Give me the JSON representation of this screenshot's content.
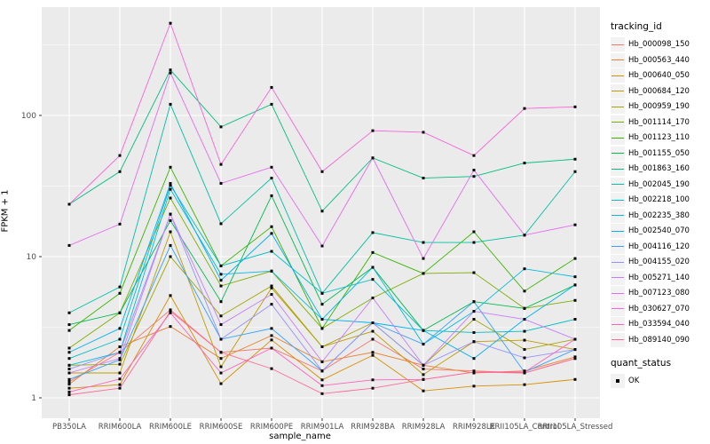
{
  "chart_data": {
    "type": "line",
    "title": "",
    "xlabel": "sample_name",
    "ylabel": "FPKM + 1",
    "y_scale": "log10",
    "y_ticks": [
      "1",
      "10",
      "100"
    ],
    "y_tick_values": [
      1,
      10,
      100
    ],
    "y_minor_values": [
      3.162,
      31.62,
      316.2
    ],
    "ylim": [
      0.72,
      590
    ],
    "grid": "on",
    "legend_position": "right",
    "panel_background": "#EBEBEB",
    "gridline_color": "#FFFFFF",
    "tick_label_color": "#4D4D4D",
    "point_marker": {
      "shape": "square",
      "color": "#000000",
      "size": 3
    },
    "categories": [
      "PB350LA",
      "RRIM600LA",
      "RRIM600LE",
      "RRIM600SE",
      "RRIM600PE",
      "RRIM901LA",
      "RRIM928BA",
      "RRIM928LA",
      "RRIM928LE",
      "RRII105LA_Control",
      "RRII105LA_Stressed"
    ],
    "series": [
      {
        "name": "Hb_000098_150",
        "color": "#F8766D",
        "values": [
          1.3,
          2.1,
          4.2,
          2.1,
          2.25,
          1.55,
          2.6,
          1.6,
          1.55,
          1.5,
          1.9
        ]
      },
      {
        "name": "Hb_000563_440",
        "color": "#EA8331",
        "values": [
          1.25,
          2.3,
          3.2,
          1.9,
          2.76,
          1.8,
          2.1,
          1.7,
          1.5,
          1.55,
          1.95
        ]
      },
      {
        "name": "Hb_000640_050",
        "color": "#D89000",
        "values": [
          1.17,
          1.24,
          5.3,
          1.26,
          2.57,
          1.34,
          2.0,
          1.12,
          1.21,
          1.24,
          1.35
        ]
      },
      {
        "name": "Hb_000684_120",
        "color": "#C09B00",
        "values": [
          1.5,
          1.5,
          15.0,
          1.66,
          6.0,
          2.3,
          2.96,
          1.46,
          2.5,
          2.56,
          2.2
        ]
      },
      {
        "name": "Hb_000959_190",
        "color": "#A3A500",
        "values": [
          1.7,
          1.73,
          10.0,
          3.8,
          6.2,
          2.3,
          3.4,
          1.7,
          3.6,
          2.2,
          2.6
        ]
      },
      {
        "name": "Hb_001114_170",
        "color": "#7CAE00",
        "values": [
          2.25,
          4.0,
          26.0,
          6.2,
          7.9,
          3.1,
          5.1,
          7.6,
          7.7,
          4.3,
          4.9
        ]
      },
      {
        "name": "Hb_001123_110",
        "color": "#39B600",
        "values": [
          3.0,
          5.5,
          43.0,
          8.6,
          16.3,
          3.1,
          10.7,
          7.6,
          15.0,
          5.7,
          9.7
        ]
      },
      {
        "name": "Hb_001155_050",
        "color": "#00BB4E",
        "values": [
          3.3,
          4.0,
          18.0,
          4.8,
          27.0,
          4.6,
          8.4,
          3.0,
          4.8,
          4.3,
          6.3
        ]
      },
      {
        "name": "Hb_001863_160",
        "color": "#00BF7D",
        "values": [
          23.5,
          40.0,
          210,
          83.0,
          120,
          21.0,
          50.0,
          36.0,
          37.0,
          46.0,
          49.0
        ]
      },
      {
        "name": "Hb_002045_190",
        "color": "#00C1A3",
        "values": [
          4.0,
          6.1,
          120,
          17.1,
          36.0,
          5.5,
          14.8,
          12.6,
          12.6,
          14.2,
          40.0
        ]
      },
      {
        "name": "Hb_002218_100",
        "color": "#00BFC4",
        "values": [
          1.9,
          2.6,
          32.0,
          8.6,
          10.9,
          5.5,
          6.9,
          3.0,
          2.9,
          2.96,
          3.6
        ]
      },
      {
        "name": "Hb_002235_380",
        "color": "#00BAE0",
        "values": [
          1.7,
          2.1,
          30.0,
          7.5,
          7.9,
          3.6,
          8.4,
          2.4,
          4.1,
          8.2,
          7.2
        ]
      },
      {
        "name": "Hb_002540_070",
        "color": "#00B0F6",
        "values": [
          2.1,
          3.1,
          33.0,
          6.8,
          14.6,
          3.6,
          3.4,
          3.0,
          1.9,
          3.6,
          6.3
        ]
      },
      {
        "name": "Hb_004116_120",
        "color": "#35A2FF",
        "values": [
          1.35,
          1.86,
          12.0,
          2.6,
          3.1,
          1.55,
          3.4,
          2.4,
          4.8,
          1.52,
          2.2
        ]
      },
      {
        "name": "Hb_004155_020",
        "color": "#9590FF",
        "values": [
          1.6,
          2.1,
          20.0,
          2.6,
          4.6,
          1.55,
          3.4,
          1.7,
          2.5,
          1.92,
          2.2
        ]
      },
      {
        "name": "Hb_005271_140",
        "color": "#C77CFF",
        "values": [
          1.5,
          1.9,
          20.0,
          3.3,
          5.4,
          1.8,
          5.1,
          1.7,
          4.1,
          3.6,
          2.6
        ]
      },
      {
        "name": "Hb_007123_080",
        "color": "#E76BF3",
        "values": [
          12.0,
          17.0,
          200,
          33.0,
          43.0,
          11.9,
          50.0,
          9.7,
          41.0,
          14.2,
          16.8
        ]
      },
      {
        "name": "Hb_030627_070",
        "color": "#FA62DB",
        "values": [
          23.5,
          52.0,
          450,
          45.0,
          158,
          40.0,
          78.0,
          76.0,
          52.0,
          112,
          115
        ]
      },
      {
        "name": "Hb_033594_040",
        "color": "#FF62BC",
        "values": [
          1.1,
          1.36,
          4.0,
          1.5,
          2.25,
          1.22,
          1.34,
          1.35,
          1.52,
          1.52,
          2.6
        ]
      },
      {
        "name": "Hb_089140_090",
        "color": "#FF6A98",
        "values": [
          1.05,
          1.17,
          4.1,
          2.1,
          1.61,
          1.07,
          1.17,
          1.35,
          1.52,
          1.5,
          1.9
        ]
      }
    ]
  },
  "legend": {
    "tracking_title": "tracking_id",
    "quant_title": "quant_status",
    "quant_items": [
      {
        "label": "OK"
      }
    ]
  }
}
